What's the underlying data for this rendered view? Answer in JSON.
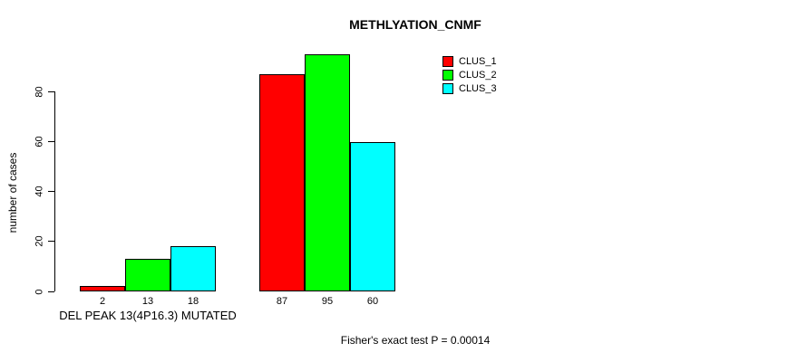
{
  "chart_data": {
    "type": "bar",
    "title": "METHLYATION_CNMF",
    "ylabel": "number of cases",
    "y_ticks": [
      0,
      20,
      40,
      60,
      80
    ],
    "ylim": [
      0,
      97
    ],
    "grid": false,
    "legend_position": "top-right-inside",
    "series": [
      {
        "name": "CLUS_1",
        "color": "#FF0000"
      },
      {
        "name": "CLUS_2",
        "color": "#00FF00"
      },
      {
        "name": "CLUS_3",
        "color": "#00FFFF"
      }
    ],
    "groups": [
      {
        "label": "DEL PEAK 13(4P16.3) MUTATED",
        "values": [
          2,
          13,
          18
        ]
      },
      {
        "label": "",
        "values": [
          87,
          95,
          60
        ]
      }
    ],
    "annotation": "Fisher's exact test P = 0.00014",
    "colors": {
      "background": "#FFFFFF",
      "axis": "#000000",
      "text": "#000000"
    }
  }
}
